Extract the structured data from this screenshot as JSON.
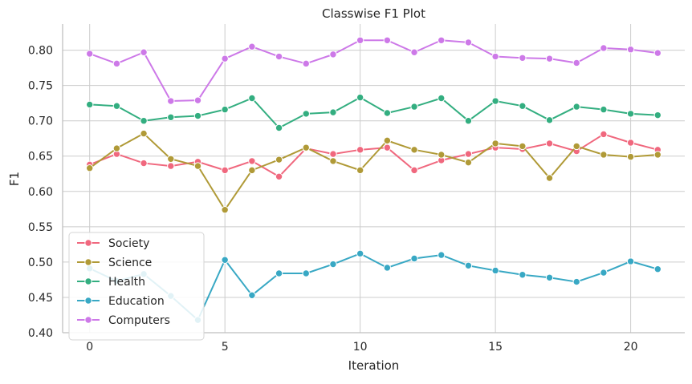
{
  "chart_data": {
    "type": "line",
    "title": "Classwise F1 Plot",
    "xlabel": "Iteration",
    "ylabel": "F1",
    "xlim": [
      -1.0,
      22.0
    ],
    "ylim": [
      0.4,
      0.837
    ],
    "xticks": [
      0,
      5,
      10,
      15,
      20
    ],
    "yticks": [
      0.4,
      0.45,
      0.5,
      0.55,
      0.6,
      0.65,
      0.7,
      0.75,
      0.8
    ],
    "xtick_labels": [
      "0",
      "5",
      "10",
      "15",
      "20"
    ],
    "ytick_labels": [
      "0.40",
      "0.45",
      "0.50",
      "0.55",
      "0.60",
      "0.65",
      "0.70",
      "0.75",
      "0.80"
    ],
    "grid": true,
    "legend_position": "lower-left",
    "x": [
      0,
      1,
      2,
      3,
      4,
      5,
      6,
      7,
      8,
      9,
      10,
      11,
      12,
      13,
      14,
      15,
      16,
      17,
      18,
      19,
      20,
      21
    ],
    "series": [
      {
        "name": "Society",
        "color": "#f0687e",
        "values": [
          0.638,
          0.653,
          0.64,
          0.636,
          0.642,
          0.63,
          0.643,
          0.621,
          0.661,
          0.653,
          0.659,
          0.662,
          0.63,
          0.644,
          0.653,
          0.662,
          0.66,
          0.668,
          0.657,
          0.681,
          0.669,
          0.659
        ]
      },
      {
        "name": "Science",
        "color": "#b09a37",
        "values": [
          0.633,
          0.661,
          0.682,
          0.646,
          0.636,
          0.574,
          0.63,
          0.645,
          0.662,
          0.643,
          0.63,
          0.672,
          0.659,
          0.652,
          0.641,
          0.668,
          0.664,
          0.619,
          0.664,
          0.652,
          0.649,
          0.652
        ]
      },
      {
        "name": "Health",
        "color": "#33ae80",
        "values": [
          0.723,
          0.721,
          0.7,
          0.705,
          0.707,
          0.716,
          0.732,
          0.69,
          0.71,
          0.712,
          0.733,
          0.711,
          0.72,
          0.732,
          0.7,
          0.728,
          0.721,
          0.701,
          0.72,
          0.716,
          0.71,
          0.708
        ]
      },
      {
        "name": "Education",
        "color": "#38a8c4",
        "values": [
          0.491,
          0.473,
          0.483,
          0.452,
          0.418,
          0.503,
          0.453,
          0.484,
          0.484,
          0.497,
          0.512,
          0.492,
          0.505,
          0.51,
          0.495,
          0.488,
          0.482,
          0.478,
          0.472,
          0.485,
          0.501,
          0.49
        ]
      },
      {
        "name": "Computers",
        "color": "#cd79e8",
        "values": [
          0.795,
          0.781,
          0.797,
          0.728,
          0.729,
          0.788,
          0.805,
          0.791,
          0.781,
          0.794,
          0.814,
          0.814,
          0.797,
          0.814,
          0.811,
          0.791,
          0.789,
          0.788,
          0.782,
          0.803,
          0.801,
          0.796
        ]
      }
    ]
  }
}
